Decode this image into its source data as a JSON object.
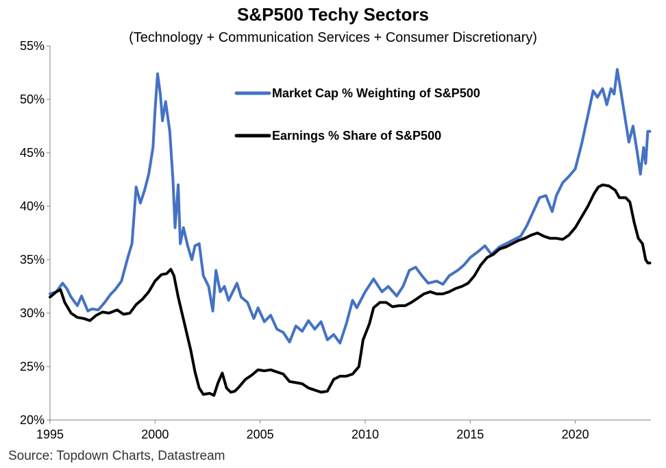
{
  "chart_data": {
    "type": "line",
    "title": "S&P500 Techy Sectors",
    "subtitle": "(Technology + Communication Services + Consumer Discretionary)",
    "source": "Source: Topdown Charts, Datastream",
    "xlim": [
      1995,
      2023.6
    ],
    "ylim": [
      20,
      55
    ],
    "x_ticks": [
      1995,
      2000,
      2005,
      2010,
      2015,
      2020
    ],
    "x_tick_labels": [
      "1995",
      "2000",
      "2005",
      "2010",
      "2015",
      "2020"
    ],
    "y_ticks": [
      20,
      25,
      30,
      35,
      40,
      45,
      50,
      55
    ],
    "y_tick_labels": [
      "20%",
      "25%",
      "30%",
      "35%",
      "40%",
      "45%",
      "50%",
      "55%"
    ],
    "grid": false,
    "legend_position": "upper-center",
    "series": [
      {
        "name": "Market Cap % Weighting of S&P500",
        "color": "#4472C4",
        "points": [
          [
            1995.0,
            31.8
          ],
          [
            1995.3,
            32.0
          ],
          [
            1995.6,
            32.8
          ],
          [
            1995.8,
            32.3
          ],
          [
            1996.0,
            31.5
          ],
          [
            1996.3,
            30.7
          ],
          [
            1996.5,
            31.6
          ],
          [
            1996.8,
            30.2
          ],
          [
            1997.0,
            30.4
          ],
          [
            1997.3,
            30.3
          ],
          [
            1997.6,
            31.0
          ],
          [
            1997.9,
            31.8
          ],
          [
            1998.1,
            32.2
          ],
          [
            1998.4,
            33.0
          ],
          [
            1998.7,
            35.2
          ],
          [
            1998.9,
            36.5
          ],
          [
            1999.1,
            41.8
          ],
          [
            1999.3,
            40.3
          ],
          [
            1999.5,
            41.5
          ],
          [
            1999.7,
            43.0
          ],
          [
            1999.9,
            45.5
          ],
          [
            2000.0,
            49.0
          ],
          [
            2000.12,
            52.4
          ],
          [
            2000.25,
            50.5
          ],
          [
            2000.35,
            48.0
          ],
          [
            2000.5,
            49.8
          ],
          [
            2000.7,
            47.0
          ],
          [
            2000.85,
            42.5
          ],
          [
            2000.95,
            38.0
          ],
          [
            2001.1,
            42.0
          ],
          [
            2001.2,
            36.5
          ],
          [
            2001.35,
            38.0
          ],
          [
            2001.55,
            36.3
          ],
          [
            2001.75,
            35.0
          ],
          [
            2001.9,
            36.3
          ],
          [
            2002.1,
            36.5
          ],
          [
            2002.3,
            33.5
          ],
          [
            2002.55,
            32.5
          ],
          [
            2002.75,
            30.2
          ],
          [
            2002.9,
            34.0
          ],
          [
            2003.1,
            32.0
          ],
          [
            2003.3,
            32.5
          ],
          [
            2003.5,
            31.2
          ],
          [
            2003.7,
            32.0
          ],
          [
            2003.9,
            32.8
          ],
          [
            2004.1,
            31.5
          ],
          [
            2004.4,
            31.0
          ],
          [
            2004.7,
            29.5
          ],
          [
            2004.9,
            30.5
          ],
          [
            2005.2,
            29.2
          ],
          [
            2005.5,
            29.8
          ],
          [
            2005.8,
            28.5
          ],
          [
            2006.1,
            28.2
          ],
          [
            2006.4,
            27.3
          ],
          [
            2006.7,
            28.8
          ],
          [
            2007.0,
            28.3
          ],
          [
            2007.3,
            29.3
          ],
          [
            2007.6,
            28.5
          ],
          [
            2007.9,
            29.2
          ],
          [
            2008.2,
            27.5
          ],
          [
            2008.5,
            28.0
          ],
          [
            2008.8,
            27.2
          ],
          [
            2009.1,
            29.0
          ],
          [
            2009.4,
            31.2
          ],
          [
            2009.6,
            30.5
          ],
          [
            2010.0,
            32.0
          ],
          [
            2010.4,
            33.2
          ],
          [
            2010.8,
            32.0
          ],
          [
            2011.1,
            32.5
          ],
          [
            2011.5,
            31.6
          ],
          [
            2011.8,
            32.5
          ],
          [
            2012.1,
            34.0
          ],
          [
            2012.4,
            34.3
          ],
          [
            2012.7,
            33.5
          ],
          [
            2013.0,
            32.8
          ],
          [
            2013.4,
            33.0
          ],
          [
            2013.7,
            32.7
          ],
          [
            2014.0,
            33.5
          ],
          [
            2014.4,
            34.0
          ],
          [
            2014.7,
            34.5
          ],
          [
            2015.0,
            35.2
          ],
          [
            2015.4,
            35.8
          ],
          [
            2015.7,
            36.3
          ],
          [
            2016.0,
            35.5
          ],
          [
            2016.4,
            36.2
          ],
          [
            2016.7,
            36.5
          ],
          [
            2017.0,
            36.8
          ],
          [
            2017.4,
            37.2
          ],
          [
            2017.7,
            38.2
          ],
          [
            2018.0,
            39.5
          ],
          [
            2018.3,
            40.8
          ],
          [
            2018.6,
            41.0
          ],
          [
            2018.9,
            39.5
          ],
          [
            2019.1,
            41.0
          ],
          [
            2019.4,
            42.2
          ],
          [
            2019.7,
            42.8
          ],
          [
            2020.0,
            43.5
          ],
          [
            2020.3,
            45.8
          ],
          [
            2020.6,
            48.5
          ],
          [
            2020.85,
            50.8
          ],
          [
            2021.05,
            50.2
          ],
          [
            2021.3,
            51.0
          ],
          [
            2021.5,
            49.5
          ],
          [
            2021.7,
            51.0
          ],
          [
            2021.85,
            50.5
          ],
          [
            2022.0,
            52.8
          ],
          [
            2022.15,
            51.0
          ],
          [
            2022.35,
            48.5
          ],
          [
            2022.55,
            46.0
          ],
          [
            2022.75,
            47.5
          ],
          [
            2022.95,
            45.0
          ],
          [
            2023.1,
            43.0
          ],
          [
            2023.25,
            45.5
          ],
          [
            2023.35,
            44.0
          ],
          [
            2023.45,
            47.0
          ],
          [
            2023.55,
            47.0
          ]
        ]
      },
      {
        "name": "Earnings % Share of S&P500",
        "color": "#000000",
        "points": [
          [
            1995.0,
            31.5
          ],
          [
            1995.3,
            32.0
          ],
          [
            1995.5,
            32.2
          ],
          [
            1995.7,
            31.0
          ],
          [
            1996.0,
            30.0
          ],
          [
            1996.3,
            29.6
          ],
          [
            1996.6,
            29.5
          ],
          [
            1996.9,
            29.3
          ],
          [
            1997.2,
            29.8
          ],
          [
            1997.5,
            30.1
          ],
          [
            1997.8,
            30.0
          ],
          [
            1998.2,
            30.3
          ],
          [
            1998.5,
            29.9
          ],
          [
            1998.8,
            30.0
          ],
          [
            1999.1,
            30.8
          ],
          [
            1999.4,
            31.3
          ],
          [
            1999.7,
            32.0
          ],
          [
            2000.0,
            33.0
          ],
          [
            2000.3,
            33.6
          ],
          [
            2000.55,
            33.7
          ],
          [
            2000.75,
            34.1
          ],
          [
            2000.9,
            33.5
          ],
          [
            2001.1,
            31.5
          ],
          [
            2001.4,
            29.0
          ],
          [
            2001.7,
            26.5
          ],
          [
            2001.9,
            24.5
          ],
          [
            2002.1,
            23.0
          ],
          [
            2002.3,
            22.4
          ],
          [
            2002.6,
            22.5
          ],
          [
            2002.8,
            22.3
          ],
          [
            2003.0,
            23.5
          ],
          [
            2003.2,
            24.4
          ],
          [
            2003.4,
            23.0
          ],
          [
            2003.6,
            22.6
          ],
          [
            2003.8,
            22.7
          ],
          [
            2004.0,
            23.1
          ],
          [
            2004.3,
            23.8
          ],
          [
            2004.6,
            24.2
          ],
          [
            2004.9,
            24.7
          ],
          [
            2005.2,
            24.6
          ],
          [
            2005.5,
            24.7
          ],
          [
            2005.8,
            24.5
          ],
          [
            2006.1,
            24.3
          ],
          [
            2006.4,
            23.6
          ],
          [
            2006.7,
            23.5
          ],
          [
            2007.0,
            23.4
          ],
          [
            2007.3,
            23.0
          ],
          [
            2007.6,
            22.8
          ],
          [
            2007.9,
            22.6
          ],
          [
            2008.2,
            22.7
          ],
          [
            2008.5,
            23.8
          ],
          [
            2008.8,
            24.1
          ],
          [
            2009.1,
            24.1
          ],
          [
            2009.4,
            24.3
          ],
          [
            2009.7,
            25.0
          ],
          [
            2009.9,
            27.5
          ],
          [
            2010.2,
            29.0
          ],
          [
            2010.4,
            30.5
          ],
          [
            2010.7,
            31.0
          ],
          [
            2011.0,
            31.0
          ],
          [
            2011.3,
            30.6
          ],
          [
            2011.6,
            30.7
          ],
          [
            2011.9,
            30.7
          ],
          [
            2012.2,
            31.0
          ],
          [
            2012.5,
            31.4
          ],
          [
            2012.8,
            31.8
          ],
          [
            2013.1,
            32.0
          ],
          [
            2013.4,
            31.8
          ],
          [
            2013.7,
            31.8
          ],
          [
            2014.0,
            32.0
          ],
          [
            2014.3,
            32.3
          ],
          [
            2014.6,
            32.5
          ],
          [
            2014.9,
            32.8
          ],
          [
            2015.2,
            33.5
          ],
          [
            2015.5,
            34.5
          ],
          [
            2015.8,
            35.2
          ],
          [
            2016.1,
            35.5
          ],
          [
            2016.4,
            36.0
          ],
          [
            2016.7,
            36.2
          ],
          [
            2017.0,
            36.5
          ],
          [
            2017.3,
            36.8
          ],
          [
            2017.6,
            37.0
          ],
          [
            2017.9,
            37.3
          ],
          [
            2018.2,
            37.5
          ],
          [
            2018.5,
            37.2
          ],
          [
            2018.8,
            37.0
          ],
          [
            2019.1,
            37.0
          ],
          [
            2019.4,
            36.9
          ],
          [
            2019.7,
            37.3
          ],
          [
            2020.0,
            38.0
          ],
          [
            2020.3,
            39.0
          ],
          [
            2020.6,
            40.0
          ],
          [
            2020.9,
            41.2
          ],
          [
            2021.1,
            41.8
          ],
          [
            2021.3,
            42.0
          ],
          [
            2021.6,
            41.9
          ],
          [
            2021.9,
            41.5
          ],
          [
            2022.1,
            40.8
          ],
          [
            2022.4,
            40.8
          ],
          [
            2022.6,
            40.4
          ],
          [
            2022.8,
            38.5
          ],
          [
            2023.0,
            37.0
          ],
          [
            2023.2,
            36.5
          ],
          [
            2023.35,
            35.0
          ],
          [
            2023.45,
            34.7
          ],
          [
            2023.55,
            34.7
          ]
        ]
      }
    ]
  }
}
